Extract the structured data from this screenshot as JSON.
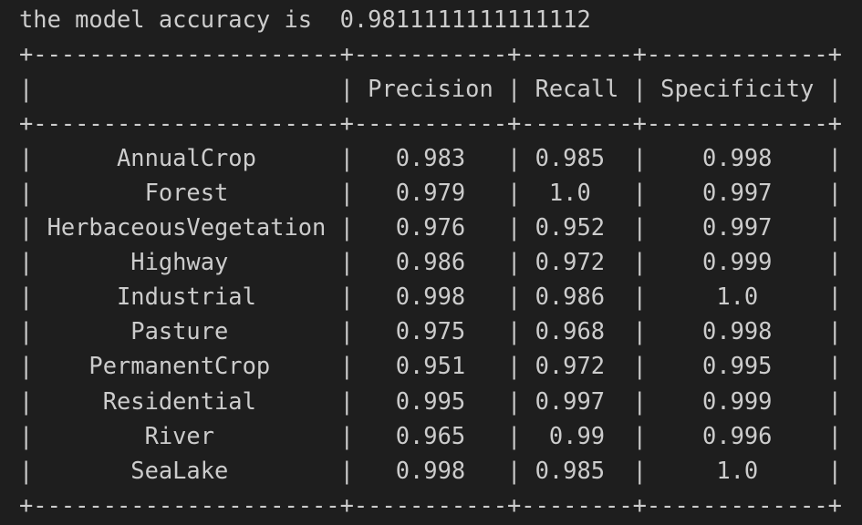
{
  "accuracy_line": "the model accuracy is  0.9811111111111112",
  "table": {
    "top_border": "+----------------------+-----------+--------+-------------+",
    "header_row": "|                      | Precision | Recall | Specificity |",
    "header_separator": "+----------------------+-----------+--------+-------------+",
    "rows": [
      "|      AnnualCrop      |   0.983   | 0.985  |    0.998    |",
      "|        Forest        |   0.979   |  1.0   |    0.997    |",
      "| HerbaceousVegetation |   0.976   | 0.952  |    0.997    |",
      "|       Highway        |   0.986   | 0.972  |    0.999    |",
      "|      Industrial      |   0.998   | 0.986  |     1.0     |",
      "|       Pasture        |   0.975   | 0.968  |    0.998    |",
      "|    PermanentCrop     |   0.951   | 0.972  |    0.995    |",
      "|     Residential      |   0.995   | 0.997  |    0.999    |",
      "|        River         |   0.965   |  0.99  |    0.996    |",
      "|       SeaLake        |   0.998   | 0.985  |     1.0     |"
    ],
    "bottom_border": "+----------------------+-----------+--------+-------------+"
  },
  "colors": {
    "background": "#1e1e1e",
    "text": "#cccccc"
  }
}
